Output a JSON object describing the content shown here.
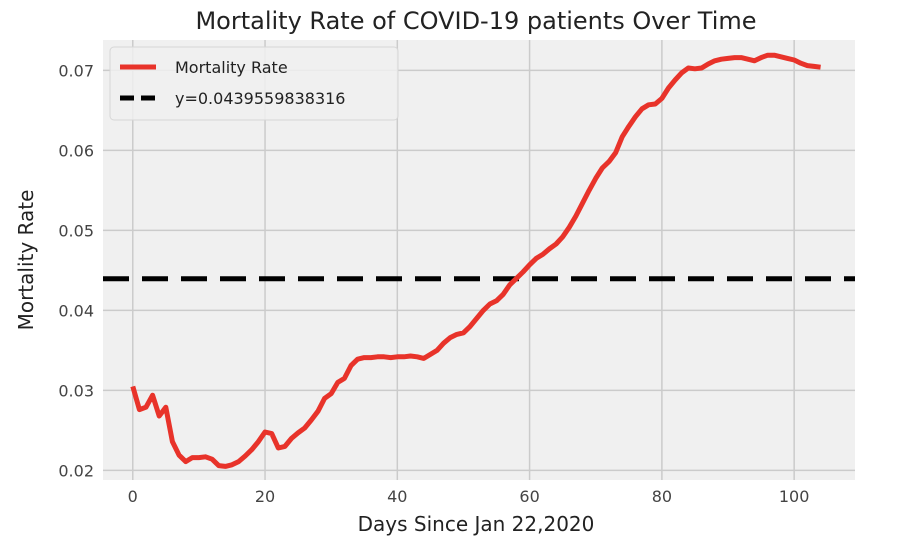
{
  "chart_data": {
    "type": "line",
    "title": "Mortality Rate of COVID-19 patients Over Time",
    "xlabel": "Days Since Jan 22,2020",
    "ylabel": "Mortality Rate",
    "xlim": [
      -4.5,
      109.2
    ],
    "ylim": [
      0.0188,
      0.0738
    ],
    "xticks": [
      0,
      20,
      40,
      60,
      80,
      100
    ],
    "xtick_labels": [
      "0",
      "20",
      "40",
      "60",
      "80",
      "100"
    ],
    "yticks": [
      0.02,
      0.03,
      0.04,
      0.05,
      0.06,
      0.07
    ],
    "ytick_labels": [
      "0.02",
      "0.03",
      "0.04",
      "0.05",
      "0.06",
      "0.07"
    ],
    "grid": true,
    "legend_position": "top-left",
    "series": [
      {
        "name": "Mortality Rate",
        "color": "#e8332a",
        "style": "solid",
        "x": [
          0,
          1,
          2,
          3,
          4,
          5,
          6,
          7,
          8,
          9,
          10,
          11,
          12,
          13,
          14,
          15,
          16,
          17,
          18,
          19,
          20,
          21,
          22,
          23,
          24,
          25,
          26,
          27,
          28,
          29,
          30,
          31,
          32,
          33,
          34,
          35,
          36,
          37,
          38,
          39,
          40,
          41,
          42,
          43,
          44,
          45,
          46,
          47,
          48,
          49,
          50,
          51,
          52,
          53,
          54,
          55,
          56,
          57,
          58,
          59,
          60,
          61,
          62,
          63,
          64,
          65,
          66,
          67,
          68,
          69,
          70,
          71,
          72,
          73,
          74,
          75,
          76,
          77,
          78,
          79,
          80,
          81,
          82,
          83,
          84,
          85,
          86,
          87,
          88,
          89,
          90,
          91,
          92,
          93,
          94,
          95,
          96,
          97,
          98,
          99,
          100,
          101,
          102,
          103,
          104
        ],
        "values": [
          0.0305,
          0.0276,
          0.0279,
          0.0294,
          0.0268,
          0.0279,
          0.0236,
          0.0219,
          0.0211,
          0.0216,
          0.0216,
          0.0217,
          0.0214,
          0.0206,
          0.0205,
          0.0207,
          0.0211,
          0.0218,
          0.0226,
          0.0236,
          0.0248,
          0.0246,
          0.0228,
          0.023,
          0.024,
          0.0247,
          0.0253,
          0.0263,
          0.0274,
          0.029,
          0.0296,
          0.031,
          0.0315,
          0.0331,
          0.0339,
          0.0341,
          0.0341,
          0.0342,
          0.0342,
          0.0341,
          0.0342,
          0.0342,
          0.0343,
          0.0342,
          0.034,
          0.0345,
          0.035,
          0.0359,
          0.0366,
          0.037,
          0.0372,
          0.038,
          0.039,
          0.04,
          0.0408,
          0.0412,
          0.042,
          0.0432,
          0.044,
          0.0448,
          0.0457,
          0.0465,
          0.047,
          0.0477,
          0.0483,
          0.0492,
          0.0504,
          0.0518,
          0.0534,
          0.055,
          0.0565,
          0.0578,
          0.0586,
          0.0597,
          0.0617,
          0.063,
          0.0642,
          0.0652,
          0.0657,
          0.0658,
          0.0665,
          0.0678,
          0.0688,
          0.0697,
          0.0703,
          0.0702,
          0.0703,
          0.0708,
          0.0712,
          0.0714,
          0.0715,
          0.0716,
          0.0716,
          0.0714,
          0.0712,
          0.0716,
          0.0719,
          0.0719,
          0.0717,
          0.0715,
          0.0713,
          0.0709,
          0.0706,
          0.0705,
          0.0704
        ]
      },
      {
        "name": "y=0.0439559838316",
        "color": "#000000",
        "style": "dashed",
        "constant": 0.0439559838316
      }
    ]
  }
}
